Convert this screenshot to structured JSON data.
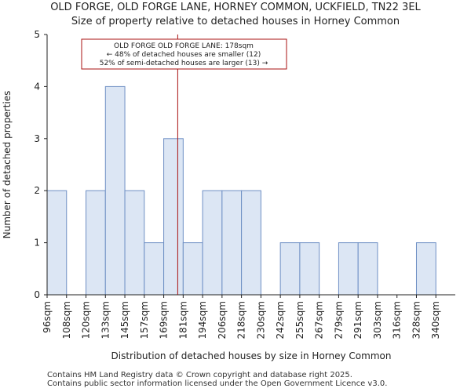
{
  "chart_data": {
    "type": "bar",
    "title": "OLD FORGE, OLD FORGE LANE, HORNEY COMMON, UCKFIELD, TN22 3EL",
    "subtitle": "Size of property relative to detached houses in Horney Common",
    "xlabel": "Distribution of detached houses by size in Horney Common",
    "ylabel": "Number of detached properties",
    "categories": [
      "96sqm",
      "108sqm",
      "120sqm",
      "133sqm",
      "145sqm",
      "157sqm",
      "169sqm",
      "181sqm",
      "194sqm",
      "206sqm",
      "218sqm",
      "230sqm",
      "242sqm",
      "255sqm",
      "267sqm",
      "279sqm",
      "291sqm",
      "303sqm",
      "316sqm",
      "328sqm",
      "340sqm"
    ],
    "values": [
      2,
      0,
      2,
      4,
      2,
      1,
      3,
      1,
      2,
      2,
      2,
      0,
      1,
      1,
      0,
      1,
      1,
      0,
      0,
      1,
      0
    ],
    "ylim": [
      0,
      5
    ],
    "yticks": [
      "0",
      "1",
      "2",
      "3",
      "4",
      "5"
    ],
    "grid": false,
    "marker": {
      "bin_index": 6.72
    },
    "annotation": {
      "line1": "OLD FORGE OLD FORGE LANE: 178sqm",
      "line2": "← 48% of detached houses are smaller (12)",
      "line3": "52% of semi-detached houses are larger (13) →"
    },
    "colors": {
      "bar_fill": "#dce6f4",
      "bar_stroke": "#6e8fc4",
      "marker": "#aa1111"
    }
  },
  "footer": {
    "line1": "Contains HM Land Registry data © Crown copyright and database right 2025.",
    "line2": "Contains public sector information licensed under the Open Government Licence v3.0."
  }
}
